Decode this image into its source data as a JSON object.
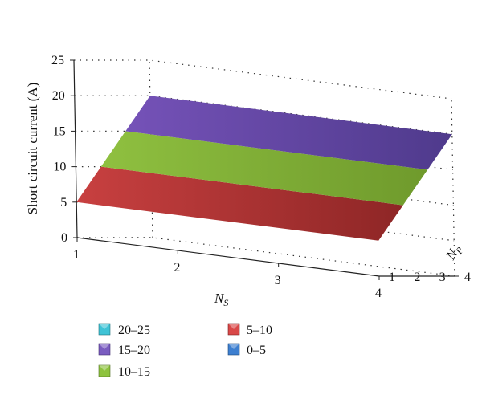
{
  "chart_data": {
    "type": "surface",
    "title": "",
    "xlabel": "N",
    "xlabel_sub": "S",
    "ylabel": "N",
    "ylabel_sub": "P",
    "zlabel": "Short circuit current (A)",
    "x_ticks": [
      "1",
      "2",
      "3",
      "4"
    ],
    "y_ticks": [
      "1",
      "2",
      "3",
      "4"
    ],
    "z_ticks": [
      "0",
      "5",
      "10",
      "15",
      "20",
      "25"
    ],
    "xlim": [
      1,
      4
    ],
    "ylim": [
      1,
      4
    ],
    "zlim": [
      0,
      25
    ],
    "grid": true,
    "surface": {
      "x": [
        1,
        2,
        3,
        4
      ],
      "y": [
        1,
        2,
        3,
        4
      ],
      "z": [
        [
          5,
          5,
          5,
          5
        ],
        [
          10,
          10,
          10,
          10
        ],
        [
          15,
          15,
          15,
          15
        ],
        [
          20,
          20,
          20,
          20
        ]
      ]
    },
    "legend": [
      {
        "label": "20–25",
        "color": "#3fc3d6"
      },
      {
        "label": "15–20",
        "color": "#7a5cc0"
      },
      {
        "label": "10–15",
        "color": "#8ec33e"
      },
      {
        "label": "5–10",
        "color": "#d94848"
      },
      {
        "label": "0–5",
        "color": "#3d7fd0"
      }
    ],
    "legend_placement": "bottom-left"
  }
}
